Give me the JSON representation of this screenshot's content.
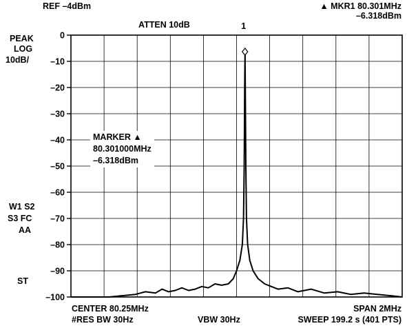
{
  "header": {
    "ref": "REF –4dBm",
    "atten": "ATTEN 10dB",
    "mkr_line1": "▲ MKR1 80.301MHz",
    "mkr_line2": "–6.318dBm"
  },
  "left_labels": {
    "peak": "PEAK",
    "log": "LOG",
    "scale": "10dB/",
    "w1s2": "W1 S2",
    "s3fc": "S3 FC",
    "aa": "AA",
    "st": "ST"
  },
  "marker_box": {
    "line1": "MARKER ▲",
    "line2": "80.301000MHz",
    "line3": "–6.318dBm"
  },
  "footer": {
    "center": "CENTER 80.25MHz",
    "span": "SPAN 2MHz",
    "rbw": "#RES BW 30Hz",
    "vbw": "VBW 30Hz",
    "sweep": "SWEEP 199.2 s (401 PTS)"
  },
  "chart_data": {
    "type": "line",
    "center_mhz": 80.25,
    "span_mhz": 2,
    "xlim": [
      79.25,
      81.25
    ],
    "ylim": [
      -100,
      0
    ],
    "yticks": [
      0,
      -10,
      -20,
      -30,
      -40,
      -50,
      -60,
      -70,
      -80,
      -90,
      -100
    ],
    "ytick_labels": [
      "0",
      "–10",
      "–20",
      "–30",
      "–40",
      "–50",
      "–60",
      "–70",
      "–80",
      "–90",
      "–100"
    ],
    "grid": true,
    "trace_color": "#000000",
    "marker": {
      "label": "1",
      "x": 80.301,
      "y": -6.318
    },
    "series": [
      {
        "x": [
          79.25,
          79.32,
          79.4,
          79.48,
          79.56,
          79.64,
          79.7,
          79.76,
          79.8,
          79.84,
          79.88,
          79.92,
          79.96,
          80.0,
          80.04,
          80.08,
          80.12,
          80.16,
          80.2,
          80.23,
          80.25,
          80.27,
          80.285,
          80.292,
          80.296,
          80.299,
          80.301,
          80.303,
          80.306,
          80.31,
          80.317,
          80.33,
          80.35,
          80.38,
          80.42,
          80.46,
          80.5,
          80.56,
          80.62,
          80.7,
          80.78,
          80.86,
          80.94,
          81.02,
          81.1,
          81.18,
          81.25
        ],
        "y": [
          -100,
          -100,
          -100,
          -100,
          -99.5,
          -99,
          -98,
          -98.5,
          -97,
          -98,
          -97.5,
          -96.5,
          -97.5,
          -97,
          -96,
          -96.5,
          -95,
          -95.5,
          -95,
          -93,
          -90,
          -86,
          -80,
          -70,
          -50,
          -20,
          -6.318,
          -20,
          -50,
          -70,
          -80,
          -86,
          -90,
          -93,
          -95,
          -96,
          -97,
          -96.5,
          -98,
          -97,
          -98.5,
          -98,
          -99,
          -98.5,
          -99,
          -99.5,
          -100
        ]
      }
    ]
  }
}
